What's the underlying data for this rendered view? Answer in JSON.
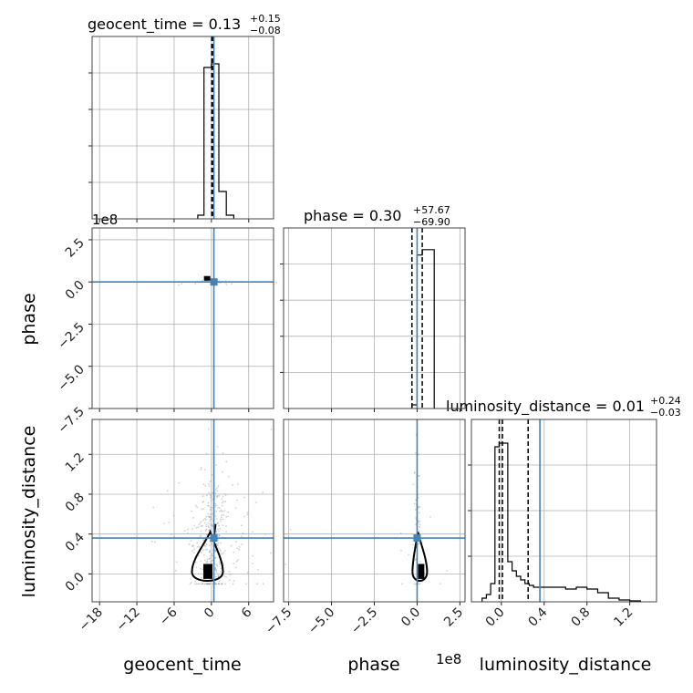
{
  "chart_data": {
    "type": "corner",
    "parameters": [
      "geocent_time",
      "phase",
      "luminosity_distance"
    ],
    "titles": [
      {
        "param": "geocent_time",
        "text": "geocent_time = 0.13",
        "sup": "+0.15",
        "sub": "−0.08"
      },
      {
        "param": "phase",
        "text": "phase = 0.30",
        "sup": "+57.67",
        "sub": "−69.90"
      },
      {
        "param": "luminosity_distance",
        "text": "luminosity_distance = 0.01",
        "sup": "+0.24",
        "sub": "−0.03"
      }
    ],
    "offset_labels": {
      "geocent_time_hist": "1e8",
      "phase_bottom": "1e8"
    },
    "truths": {
      "geocent_time": 0.4,
      "phase": 0.0,
      "luminosity_distance": 0.36
    },
    "quantile_lines": {
      "geocent_time": [
        0.05,
        0.13,
        0.28
      ],
      "phase": [
        -0.3,
        0.3
      ],
      "luminosity_distance": [
        -0.02,
        0.01,
        0.25
      ]
    },
    "x_ranges": {
      "geocent_time": [
        -19.2,
        10.0
      ],
      "phase": [
        -7.8,
        2.8
      ],
      "luminosity_distance": [
        -0.28,
        1.45
      ]
    },
    "y_ranges": {
      "phase": [
        -7.5,
        3.2
      ],
      "luminosity_distance": [
        -0.28,
        1.55
      ]
    },
    "x_ticks": {
      "geocent_time": [
        "−18",
        "−12",
        "−6",
        "0",
        "6"
      ],
      "phase": [
        "−7.5",
        "−5.0",
        "−2.5",
        "0.0",
        "2.5"
      ],
      "luminosity_distance": [
        "0.0",
        "0.4",
        "0.8",
        "1.2"
      ]
    },
    "x_tick_values": {
      "geocent_time": [
        -18,
        -12,
        -6,
        0,
        6
      ],
      "phase": [
        -7.5,
        -5.0,
        -2.5,
        0.0,
        2.5
      ],
      "luminosity_distance": [
        0.0,
        0.4,
        0.8,
        1.2
      ]
    },
    "y_ticks": {
      "phase": [
        "2.5",
        "0.0",
        "−2.5",
        "−5.0",
        "−7.5"
      ],
      "luminosity_distance": [
        "1.2",
        "0.8",
        "0.4",
        "0.0"
      ]
    },
    "y_tick_values": {
      "phase": [
        2.5,
        0.0,
        -2.5,
        -5.0,
        -7.5
      ],
      "luminosity_distance": [
        1.2,
        0.8,
        0.4,
        0.0
      ]
    },
    "histograms": {
      "geocent_time": {
        "edges": [
          -2.2,
          -1.2,
          0.0,
          1.2,
          2.4,
          3.6
        ],
        "counts": [
          0.02,
          0.83,
          0.85,
          0.15,
          0.02
        ]
      },
      "phase": {
        "edges": [
          -0.3,
          0.0,
          0.3,
          1.0
        ],
        "counts": [
          0.02,
          0.85,
          0.88
        ]
      },
      "luminosity_distance": {
        "edges": [
          -0.18,
          -0.14,
          -0.1,
          -0.06,
          -0.02,
          0.02,
          0.06,
          0.1,
          0.14,
          0.18,
          0.22,
          0.26,
          0.3,
          0.34,
          0.42,
          0.5,
          0.6,
          0.7,
          0.8,
          0.9,
          1.0,
          1.1,
          1.2,
          1.3
        ],
        "counts": [
          0.02,
          0.04,
          0.1,
          0.85,
          0.87,
          0.87,
          0.22,
          0.17,
          0.14,
          0.12,
          0.1,
          0.09,
          0.08,
          0.08,
          0.08,
          0.08,
          0.07,
          0.08,
          0.07,
          0.05,
          0.02,
          0.01,
          0.005
        ]
      }
    }
  }
}
